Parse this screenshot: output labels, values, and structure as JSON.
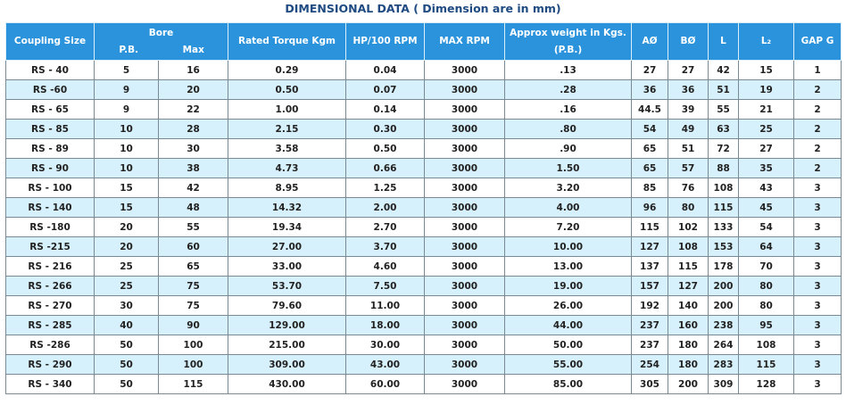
{
  "title": "DIMENSIONAL DATA ( Dimension are in mm)",
  "table": {
    "header": {
      "coupling": "Coupling Size",
      "bore": {
        "title": "Bore",
        "pb": "P.B.",
        "max": "Max"
      },
      "rest": [
        "Rated Torque Kgm",
        "HP/100 RPM",
        "MAX RPM",
        "Approx weight in Kgs.(P.B.)",
        "AØ",
        "BØ",
        "L",
        "L₂",
        "GAP G"
      ]
    },
    "rows": [
      [
        "RS - 40",
        "5",
        "16",
        "0.29",
        "0.04",
        "3000",
        ".13",
        "27",
        "27",
        "42",
        "15",
        "1"
      ],
      [
        "RS -60",
        "9",
        "20",
        "0.50",
        "0.07",
        "3000",
        ".28",
        "36",
        "36",
        "51",
        "19",
        "2"
      ],
      [
        "RS - 65",
        "9",
        "22",
        "1.00",
        "0.14",
        "3000",
        ".16",
        "44.5",
        "39",
        "55",
        "21",
        "2"
      ],
      [
        "RS - 85",
        "10",
        "28",
        "2.15",
        "0.30",
        "3000",
        ".80",
        "54",
        "49",
        "63",
        "25",
        "2"
      ],
      [
        "RS - 89",
        "10",
        "30",
        "3.58",
        "0.50",
        "3000",
        ".90",
        "65",
        "51",
        "72",
        "27",
        "2"
      ],
      [
        "RS - 90",
        "10",
        "38",
        "4.73",
        "0.66",
        "3000",
        "1.50",
        "65",
        "57",
        "88",
        "35",
        "2"
      ],
      [
        "RS - 100",
        "15",
        "42",
        "8.95",
        "1.25",
        "3000",
        "3.20",
        "85",
        "76",
        "108",
        "43",
        "3"
      ],
      [
        "RS - 140",
        "15",
        "48",
        "14.32",
        "2.00",
        "3000",
        "4.00",
        "96",
        "80",
        "115",
        "45",
        "3"
      ],
      [
        "RS -180",
        "20",
        "55",
        "19.34",
        "2.70",
        "3000",
        "7.20",
        "115",
        "102",
        "133",
        "54",
        "3"
      ],
      [
        "RS -215",
        "20",
        "60",
        "27.00",
        "3.70",
        "3000",
        "10.00",
        "127",
        "108",
        "153",
        "64",
        "3"
      ],
      [
        "RS - 216",
        "25",
        "65",
        "33.00",
        "4.60",
        "3000",
        "13.00",
        "137",
        "115",
        "178",
        "70",
        "3"
      ],
      [
        "RS - 266",
        "25",
        "75",
        "53.70",
        "7.50",
        "3000",
        "19.00",
        "157",
        "127",
        "200",
        "80",
        "3"
      ],
      [
        "RS - 270",
        "30",
        "75",
        "79.60",
        "11.00",
        "3000",
        "26.00",
        "192",
        "140",
        "200",
        "80",
        "3"
      ],
      [
        "RS - 285",
        "40",
        "90",
        "129.00",
        "18.00",
        "3000",
        "44.00",
        "237",
        "160",
        "238",
        "95",
        "3"
      ],
      [
        "RS -286",
        "50",
        "100",
        "215.00",
        "30.00",
        "3000",
        "50.00",
        "237",
        "180",
        "264",
        "108",
        "3"
      ],
      [
        "RS - 290",
        "50",
        "100",
        "309.00",
        "43.00",
        "3000",
        "55.00",
        "254",
        "180",
        "283",
        "115",
        "3"
      ],
      [
        "RS - 340",
        "50",
        "115",
        "430.00",
        "60.00",
        "3000",
        "85.00",
        "305",
        "200",
        "309",
        "128",
        "3"
      ]
    ]
  }
}
